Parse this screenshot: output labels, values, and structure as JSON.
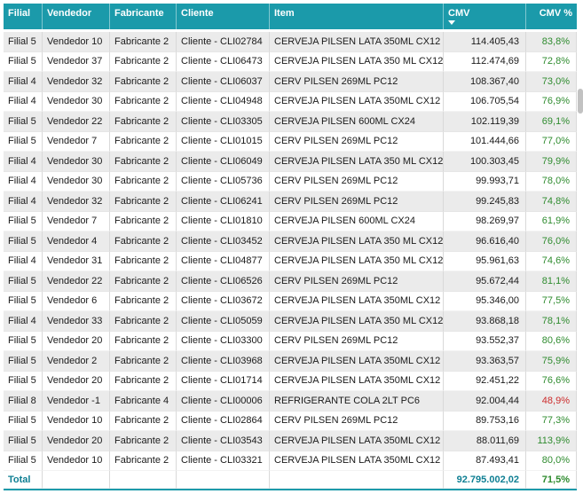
{
  "colors": {
    "header_bg": "#1b9aaa",
    "header_text": "#ffffff",
    "row_alt_bg": "#ebebeb",
    "pct_good": "#2e8b2e",
    "pct_bad": "#cc2b2b",
    "total_text": "#0f7f93",
    "grid_border": "#d9d9d9"
  },
  "table": {
    "columns": [
      {
        "label": "Filial",
        "align": "left",
        "width": 44,
        "sorted": false
      },
      {
        "label": "Vendedor",
        "align": "left",
        "width": 76,
        "sorted": false
      },
      {
        "label": "Fabricante",
        "align": "left",
        "width": 75,
        "sorted": false
      },
      {
        "label": "Cliente",
        "align": "left",
        "width": 105,
        "sorted": false
      },
      {
        "label": "Item",
        "align": "left",
        "width": 196,
        "sorted": false
      },
      {
        "label": "CMV",
        "align": "left",
        "width": 93,
        "sorted": true,
        "sort_icon": "sort-descending-icon"
      },
      {
        "label": "CMV %",
        "align": "right",
        "width": 57,
        "sorted": false
      }
    ],
    "rows": [
      {
        "filial": "Filial 5",
        "vendedor": "Vendedor 10",
        "fabricante": "Fabricante 2",
        "cliente": "Cliente - CLI02784",
        "item": "CERVEJA PILSEN LATA 350ML CX12",
        "cmv": "114.405,43",
        "cmv_pct": "83,8%",
        "pct_status": "good"
      },
      {
        "filial": "Filial 5",
        "vendedor": "Vendedor 37",
        "fabricante": "Fabricante 2",
        "cliente": "Cliente - CLI06473",
        "item": "CERVEJA PILSEN LATA 350 ML CX12",
        "cmv": "112.474,69",
        "cmv_pct": "72,8%",
        "pct_status": "good"
      },
      {
        "filial": "Filial 4",
        "vendedor": "Vendedor 32",
        "fabricante": "Fabricante 2",
        "cliente": "Cliente - CLI06037",
        "item": "CERV PILSEN 269ML PC12",
        "cmv": "108.367,40",
        "cmv_pct": "73,0%",
        "pct_status": "good"
      },
      {
        "filial": "Filial 4",
        "vendedor": "Vendedor 30",
        "fabricante": "Fabricante 2",
        "cliente": "Cliente - CLI04948",
        "item": "CERVEJA PILSEN LATA 350ML CX12",
        "cmv": "106.705,54",
        "cmv_pct": "76,9%",
        "pct_status": "good"
      },
      {
        "filial": "Filial 5",
        "vendedor": "Vendedor 22",
        "fabricante": "Fabricante 2",
        "cliente": "Cliente - CLI03305",
        "item": "CERVEJA PILSEN 600ML CX24",
        "cmv": "102.119,39",
        "cmv_pct": "69,1%",
        "pct_status": "good"
      },
      {
        "filial": "Filial 5",
        "vendedor": "Vendedor 7",
        "fabricante": "Fabricante 2",
        "cliente": "Cliente - CLI01015",
        "item": "CERV PILSEN 269ML PC12",
        "cmv": "101.444,66",
        "cmv_pct": "77,0%",
        "pct_status": "good"
      },
      {
        "filial": "Filial 4",
        "vendedor": "Vendedor 30",
        "fabricante": "Fabricante 2",
        "cliente": "Cliente - CLI06049",
        "item": "CERVEJA PILSEN LATA 350 ML CX12",
        "cmv": "100.303,45",
        "cmv_pct": "79,9%",
        "pct_status": "good"
      },
      {
        "filial": "Filial 4",
        "vendedor": "Vendedor 30",
        "fabricante": "Fabricante 2",
        "cliente": "Cliente - CLI05736",
        "item": "CERV PILSEN 269ML PC12",
        "cmv": "99.993,71",
        "cmv_pct": "78,0%",
        "pct_status": "good"
      },
      {
        "filial": "Filial 4",
        "vendedor": "Vendedor 32",
        "fabricante": "Fabricante 2",
        "cliente": "Cliente - CLI06241",
        "item": "CERV PILSEN 269ML PC12",
        "cmv": "99.245,83",
        "cmv_pct": "74,8%",
        "pct_status": "good"
      },
      {
        "filial": "Filial 5",
        "vendedor": "Vendedor 7",
        "fabricante": "Fabricante 2",
        "cliente": "Cliente - CLI01810",
        "item": "CERVEJA PILSEN 600ML CX24",
        "cmv": "98.269,97",
        "cmv_pct": "61,9%",
        "pct_status": "good"
      },
      {
        "filial": "Filial 5",
        "vendedor": "Vendedor 4",
        "fabricante": "Fabricante 2",
        "cliente": "Cliente - CLI03452",
        "item": "CERVEJA PILSEN LATA 350 ML CX12",
        "cmv": "96.616,40",
        "cmv_pct": "76,0%",
        "pct_status": "good"
      },
      {
        "filial": "Filial 4",
        "vendedor": "Vendedor 31",
        "fabricante": "Fabricante 2",
        "cliente": "Cliente - CLI04877",
        "item": "CERVEJA PILSEN LATA 350 ML CX12",
        "cmv": "95.961,63",
        "cmv_pct": "74,6%",
        "pct_status": "good"
      },
      {
        "filial": "Filial 5",
        "vendedor": "Vendedor 22",
        "fabricante": "Fabricante 2",
        "cliente": "Cliente - CLI06526",
        "item": "CERV PILSEN 269ML PC12",
        "cmv": "95.672,44",
        "cmv_pct": "81,1%",
        "pct_status": "good"
      },
      {
        "filial": "Filial 5",
        "vendedor": "Vendedor 6",
        "fabricante": "Fabricante 2",
        "cliente": "Cliente - CLI03672",
        "item": "CERVEJA PILSEN LATA 350ML CX12",
        "cmv": "95.346,00",
        "cmv_pct": "77,5%",
        "pct_status": "good"
      },
      {
        "filial": "Filial 4",
        "vendedor": "Vendedor 33",
        "fabricante": "Fabricante 2",
        "cliente": "Cliente - CLI05059",
        "item": "CERVEJA PILSEN LATA 350 ML CX12",
        "cmv": "93.868,18",
        "cmv_pct": "78,1%",
        "pct_status": "good"
      },
      {
        "filial": "Filial 5",
        "vendedor": "Vendedor 20",
        "fabricante": "Fabricante 2",
        "cliente": "Cliente - CLI03300",
        "item": "CERV PILSEN 269ML PC12",
        "cmv": "93.552,37",
        "cmv_pct": "80,6%",
        "pct_status": "good"
      },
      {
        "filial": "Filial 5",
        "vendedor": "Vendedor 2",
        "fabricante": "Fabricante 2",
        "cliente": "Cliente - CLI03968",
        "item": "CERVEJA PILSEN LATA 350ML CX12",
        "cmv": "93.363,57",
        "cmv_pct": "75,9%",
        "pct_status": "good"
      },
      {
        "filial": "Filial 5",
        "vendedor": "Vendedor 20",
        "fabricante": "Fabricante 2",
        "cliente": "Cliente - CLI01714",
        "item": "CERVEJA PILSEN LATA 350ML CX12",
        "cmv": "92.451,22",
        "cmv_pct": "76,6%",
        "pct_status": "good"
      },
      {
        "filial": "Filial 8",
        "vendedor": "Vendedor -1",
        "fabricante": "Fabricante 4",
        "cliente": "Cliente - CLI00006",
        "item": "REFRIGERANTE COLA 2LT PC6",
        "cmv": "92.004,44",
        "cmv_pct": "48,9%",
        "pct_status": "bad"
      },
      {
        "filial": "Filial 5",
        "vendedor": "Vendedor 10",
        "fabricante": "Fabricante 2",
        "cliente": "Cliente - CLI02864",
        "item": "CERV PILSEN 269ML PC12",
        "cmv": "89.753,16",
        "cmv_pct": "77,3%",
        "pct_status": "good"
      },
      {
        "filial": "Filial 5",
        "vendedor": "Vendedor 20",
        "fabricante": "Fabricante 2",
        "cliente": "Cliente - CLI03543",
        "item": "CERVEJA PILSEN LATA 350ML CX12",
        "cmv": "88.011,69",
        "cmv_pct": "113,9%",
        "pct_status": "good"
      },
      {
        "filial": "Filial 5",
        "vendedor": "Vendedor 10",
        "fabricante": "Fabricante 2",
        "cliente": "Cliente - CLI03321",
        "item": "CERVEJA PILSEN LATA 350ML CX12",
        "cmv": "87.493,41",
        "cmv_pct": "80,0%",
        "pct_status": "good"
      }
    ],
    "total": {
      "label": "Total",
      "cmv": "92.795.002,02",
      "cmv_pct": "71,5%",
      "pct_status": "good"
    }
  }
}
